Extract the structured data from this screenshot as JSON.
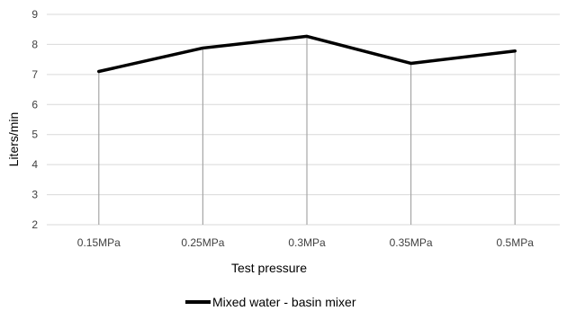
{
  "chart_data": {
    "type": "line",
    "title": "",
    "xlabel": "Test pressure",
    "ylabel": "Liters/min",
    "categories": [
      "0.15MPa",
      "0.25MPa",
      "0.3MPa",
      "0.35MPa",
      "0.5MPa"
    ],
    "series": [
      {
        "name": "Mixed water - basin mixer",
        "values": [
          7.1,
          7.88,
          8.27,
          7.37,
          7.78
        ],
        "color": "#000000"
      }
    ],
    "ylim": [
      2,
      9
    ],
    "yticks": [
      2,
      3,
      4,
      5,
      6,
      7,
      8,
      9
    ],
    "grid": "horizontal",
    "drop_lines": true,
    "legend_position": "bottom-center"
  }
}
